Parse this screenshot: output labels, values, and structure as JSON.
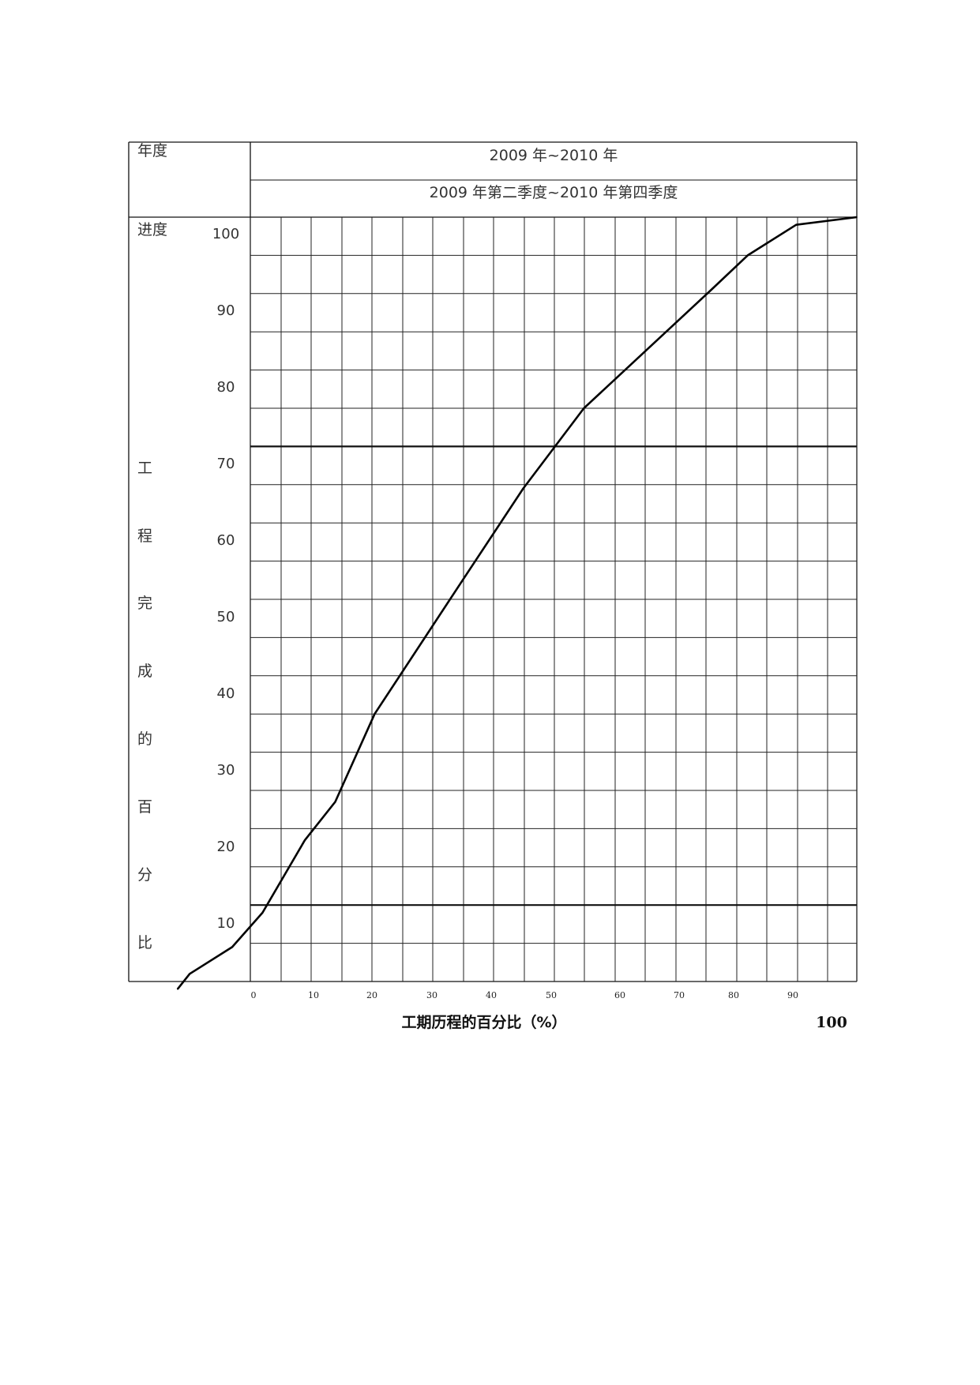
{
  "header": {
    "label_year": "年度",
    "label_progress": "进度",
    "year_range": "2009 年~2010 年",
    "quarter_range": "2009 年第二季度~2010 年第四季度"
  },
  "side_label_chars": [
    "工",
    "程",
    "完",
    "成",
    "的",
    "百",
    "分",
    "比"
  ],
  "chart_data": {
    "type": "line",
    "xlabel": "工期历程的百分比（%）",
    "x_end_label": "100",
    "x_tick_labels": [
      "0",
      "10",
      "20",
      "30",
      "40",
      "50",
      "60",
      "70",
      "80",
      "90"
    ],
    "y_tick_labels": [
      "100",
      "90",
      "80",
      "70",
      "60",
      "50",
      "40",
      "30",
      "20",
      "10"
    ],
    "ylim": [
      0,
      100
    ],
    "grid": true,
    "highlight_rows_y": [
      70,
      10
    ],
    "series": [
      {
        "points": [
          [
            -12,
            -1
          ],
          [
            -10,
            1
          ],
          [
            -3,
            4.5
          ],
          [
            2,
            9
          ],
          [
            9,
            18.5
          ],
          [
            14,
            23.5
          ],
          [
            20.5,
            35
          ],
          [
            35,
            52.5
          ],
          [
            45,
            64.5
          ],
          [
            55,
            75
          ],
          [
            76,
            90.5
          ],
          [
            82,
            95
          ],
          [
            90,
            99
          ],
          [
            100,
            100
          ]
        ]
      }
    ]
  }
}
